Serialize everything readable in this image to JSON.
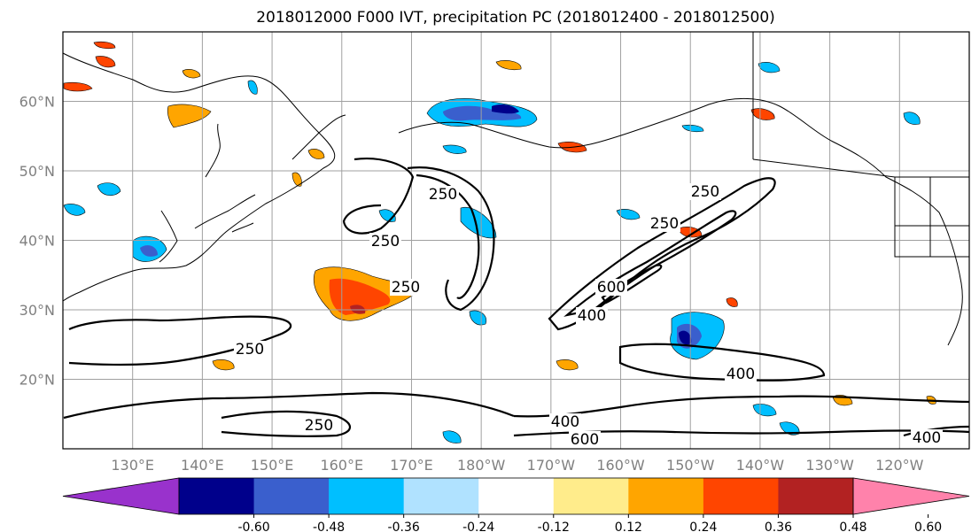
{
  "title": "2018012000 F000 IVT, precipitation PC (2018012400 - 2018012500)",
  "axes": {
    "lat_labels": [
      "60°N",
      "50°N",
      "40°N",
      "30°N",
      "20°N"
    ],
    "lat_values": [
      60,
      50,
      40,
      30,
      20
    ],
    "lon_labels": [
      "130°E",
      "140°E",
      "150°E",
      "160°E",
      "170°E",
      "180°W",
      "170°W",
      "160°W",
      "150°W",
      "140°W",
      "130°W",
      "120°W"
    ],
    "lon_values": [
      130,
      140,
      150,
      160,
      170,
      180,
      190,
      200,
      210,
      220,
      230,
      240
    ],
    "lon_range": [
      120,
      250
    ],
    "lat_range": [
      10,
      70
    ],
    "grid": true
  },
  "colorbar": {
    "ticks": [
      "-0.60",
      "-0.48",
      "-0.36",
      "-0.24",
      "-0.12",
      "0.12",
      "0.24",
      "0.36",
      "0.48",
      "0.60"
    ],
    "colors": [
      "#9932cc",
      "#00008b",
      "#3a5fcd",
      "#00bfff",
      "#b0e2ff",
      "#ffffff",
      "#ffec8b",
      "#ffa500",
      "#ff4500",
      "#b22222",
      "#ff82ab"
    ],
    "extend": "both"
  },
  "ivt_contour_labels": [
    {
      "text": "250",
      "key": "a"
    },
    {
      "text": "250",
      "key": "b"
    },
    {
      "text": "250",
      "key": "c"
    },
    {
      "text": "250",
      "key": "d"
    },
    {
      "text": "250",
      "key": "e"
    },
    {
      "text": "250",
      "key": "f"
    },
    {
      "text": "250",
      "key": "g"
    },
    {
      "text": "400",
      "key": "h"
    },
    {
      "text": "600",
      "key": "i"
    },
    {
      "text": "400",
      "key": "j"
    },
    {
      "text": "400",
      "key": "k"
    },
    {
      "text": "600",
      "key": "l"
    },
    {
      "text": "400",
      "key": "m"
    }
  ],
  "colors": {
    "contour": "#000000",
    "grid": "#a0a0a0",
    "tick_text": "#808080"
  }
}
